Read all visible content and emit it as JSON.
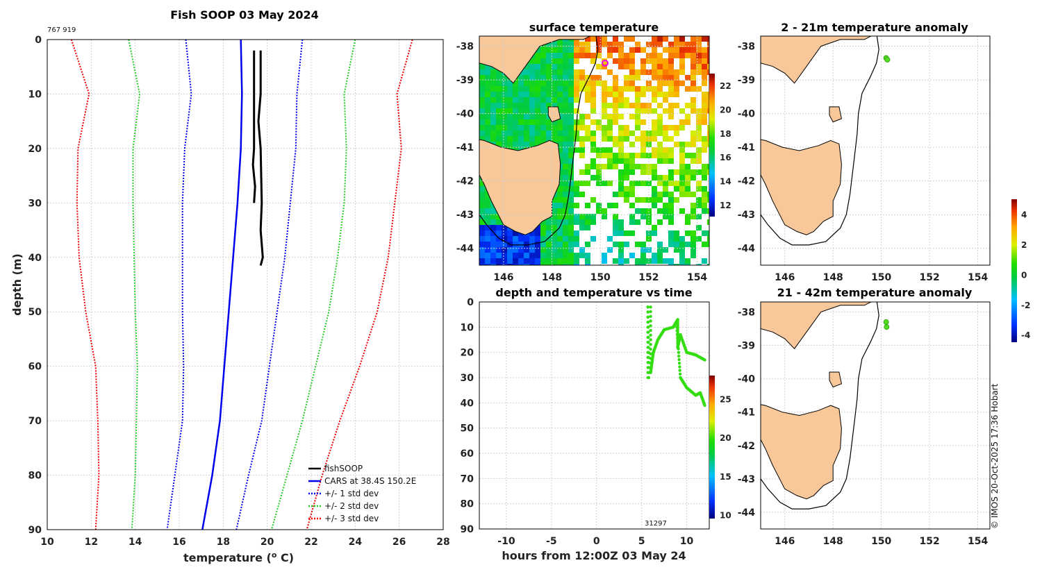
{
  "title": "Fish SOOP 03 May 2024",
  "serial": "767 919",
  "credit": "© IMOS 20-Oct-2025 17:36 Hobart",
  "colors": {
    "profile": "#000000",
    "cars": "#0000ee",
    "std1": "#0000ee",
    "std2": "#22cc22",
    "std3": "#ee0000",
    "land": "#f8c89a",
    "shelf": "#000000"
  },
  "chart_data": [
    {
      "id": "profile",
      "type": "line",
      "title": "Fish SOOP 03 May 2024",
      "xlabel": "temperature (",
      "xlabel_unit": "o",
      "xlabel_tail": " C)",
      "ylabel": "depth (m)",
      "xlim": [
        10,
        28
      ],
      "ylim": [
        90,
        0
      ],
      "xticks": [
        "10",
        "12",
        "14",
        "16",
        "18",
        "20",
        "22",
        "24",
        "26",
        "28"
      ],
      "yticks": [
        "0",
        "10",
        "20",
        "30",
        "40",
        "50",
        "60",
        "70",
        "80",
        "90"
      ],
      "legend": [
        "fishSOOP",
        "CARS at 38.4S 150.2E",
        "+/- 1 std dev",
        "+/- 2 std dev",
        "+/- 3 std dev"
      ],
      "series": [
        {
          "name": "fishSOOP a",
          "points": [
            [
              19.4,
              2
            ],
            [
              19.4,
              10
            ],
            [
              19.4,
              20
            ],
            [
              19.35,
              23
            ],
            [
              19.45,
              27
            ],
            [
              19.4,
              30
            ]
          ]
        },
        {
          "name": "fishSOOP b",
          "points": [
            [
              19.7,
              2
            ],
            [
              19.7,
              10
            ],
            [
              19.6,
              15
            ],
            [
              19.7,
              20
            ],
            [
              19.75,
              30
            ],
            [
              19.7,
              35
            ],
            [
              19.8,
              40
            ],
            [
              19.7,
              41.5
            ]
          ]
        },
        {
          "name": "CARS",
          "points": [
            [
              18.8,
              0
            ],
            [
              18.85,
              10
            ],
            [
              18.8,
              20
            ],
            [
              18.65,
              30
            ],
            [
              18.45,
              40
            ],
            [
              18.25,
              50
            ],
            [
              18.05,
              60
            ],
            [
              17.85,
              70
            ],
            [
              17.5,
              80
            ],
            [
              17.05,
              90
            ]
          ]
        },
        {
          "name": "-1 std",
          "points": [
            [
              16.3,
              0
            ],
            [
              16.55,
              10
            ],
            [
              16.25,
              20
            ],
            [
              16.15,
              30
            ],
            [
              16.15,
              40
            ],
            [
              16.15,
              50
            ],
            [
              16.2,
              60
            ],
            [
              16.15,
              70
            ],
            [
              15.8,
              80
            ],
            [
              15.45,
              90
            ]
          ]
        },
        {
          "name": "+1 std",
          "points": [
            [
              21.6,
              0
            ],
            [
              21.35,
              10
            ],
            [
              21.3,
              20
            ],
            [
              21.05,
              30
            ],
            [
              20.8,
              40
            ],
            [
              20.45,
              50
            ],
            [
              20.1,
              60
            ],
            [
              19.75,
              70
            ],
            [
              19.15,
              80
            ],
            [
              18.6,
              90
            ]
          ]
        },
        {
          "name": "-2 std",
          "points": [
            [
              13.7,
              0
            ],
            [
              14.2,
              10
            ],
            [
              13.9,
              20
            ],
            [
              13.9,
              30
            ],
            [
              13.95,
              40
            ],
            [
              14.0,
              50
            ],
            [
              14.1,
              60
            ],
            [
              14.05,
              70
            ],
            [
              14.0,
              80
            ],
            [
              13.85,
              90
            ]
          ]
        },
        {
          "name": "+2 std",
          "points": [
            [
              24.0,
              0
            ],
            [
              23.5,
              10
            ],
            [
              23.6,
              20
            ],
            [
              23.5,
              30
            ],
            [
              23.2,
              40
            ],
            [
              22.8,
              50
            ],
            [
              22.2,
              60
            ],
            [
              21.6,
              70
            ],
            [
              20.9,
              80
            ],
            [
              20.2,
              90
            ]
          ]
        },
        {
          "name": "-3 std",
          "points": [
            [
              11.1,
              0
            ],
            [
              11.9,
              10
            ],
            [
              11.4,
              20
            ],
            [
              11.35,
              30
            ],
            [
              11.45,
              40
            ],
            [
              11.75,
              50
            ],
            [
              12.2,
              60
            ],
            [
              12.3,
              70
            ],
            [
              12.35,
              80
            ],
            [
              12.2,
              90
            ]
          ]
        },
        {
          "name": "+3 std",
          "points": [
            [
              26.6,
              0
            ],
            [
              25.9,
              10
            ],
            [
              26.1,
              20
            ],
            [
              25.8,
              30
            ],
            [
              25.5,
              40
            ],
            [
              25.0,
              50
            ],
            [
              24.2,
              60
            ],
            [
              23.3,
              70
            ],
            [
              22.5,
              80
            ],
            [
              21.8,
              90
            ]
          ]
        }
      ]
    },
    {
      "id": "sst",
      "type": "heatmap",
      "title": "surface temperature",
      "xlim": [
        145,
        154.5
      ],
      "ylim": [
        -44.5,
        -37.7
      ],
      "xticks": [
        "146",
        "148",
        "150",
        "152",
        "154"
      ],
      "yticks": [
        "-38",
        "-39",
        "-40",
        "-41",
        "-42",
        "-43",
        "-44"
      ],
      "colorbar_ticks": [
        "12",
        "14",
        "16",
        "18",
        "20",
        "22"
      ],
      "colorbar_range": [
        11,
        23
      ]
    },
    {
      "id": "timeseries",
      "type": "scatter",
      "title": "depth and temperature vs time",
      "xlabel": "hours from 12:00Z 03 May 24",
      "xlim": [
        -13,
        12.5
      ],
      "ylim": [
        90,
        0
      ],
      "xticks": [
        "-10",
        "-5",
        "0",
        "5",
        "10"
      ],
      "yticks": [
        "0",
        "10",
        "20",
        "30",
        "40",
        "50",
        "60",
        "70",
        "80",
        "90"
      ],
      "colorbar_ticks": [
        "10",
        "15",
        "20",
        "25"
      ],
      "colorbar_range": [
        9.5,
        28
      ],
      "annotation": "31297"
    },
    {
      "id": "anom1",
      "type": "scatter",
      "title": "2 - 21m temperature anomaly",
      "xlim": [
        145,
        154.5
      ],
      "ylim": [
        -44.5,
        -37.7
      ],
      "xticks": [
        "146",
        "148",
        "150",
        "152",
        "154"
      ],
      "yticks": [
        "-38",
        "-39",
        "-40",
        "-41",
        "-42",
        "-43",
        "-44"
      ],
      "points": [
        [
          150.2,
          -38.35
        ],
        [
          150.25,
          -38.4
        ]
      ]
    },
    {
      "id": "anom2",
      "type": "scatter",
      "title": "21 - 42m temperature anomaly",
      "xlim": [
        145,
        154.5
      ],
      "ylim": [
        -44.5,
        -37.7
      ],
      "xticks": [
        "146",
        "148",
        "150",
        "152",
        "154"
      ],
      "yticks": [
        "-38",
        "-39",
        "-40",
        "-41",
        "-42",
        "-43",
        "-44"
      ],
      "points": [
        [
          150.2,
          -38.3
        ],
        [
          150.22,
          -38.45
        ]
      ],
      "colorbar_ticks": [
        "-4",
        "-2",
        "0",
        "2",
        "4"
      ],
      "colorbar_range": [
        -4.5,
        5
      ]
    }
  ]
}
